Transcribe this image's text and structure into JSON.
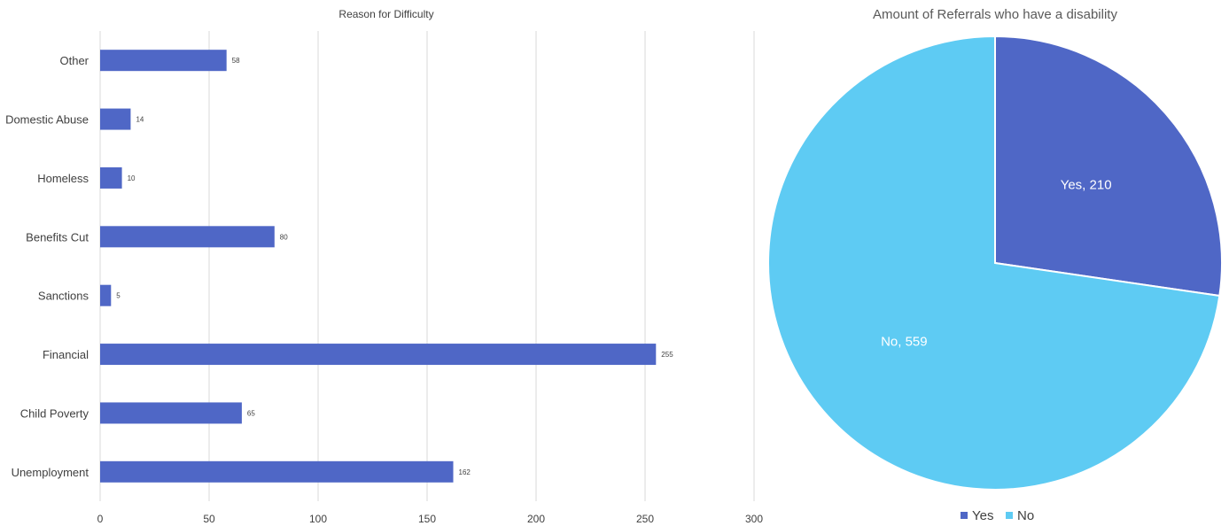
{
  "chart_data": [
    {
      "type": "bar",
      "orientation": "horizontal",
      "title": "Reason for Difficulty",
      "categories": [
        "Unemployment",
        "Child Poverty",
        "Financial",
        "Sanctions",
        "Benefits Cut",
        "Homeless",
        "Domestic Abuse",
        "Other"
      ],
      "values": [
        162,
        65,
        255,
        5,
        80,
        10,
        14,
        58
      ],
      "xlim": [
        0,
        300
      ],
      "x_ticks": [
        "0",
        "50",
        "100",
        "150",
        "200",
        "250",
        "300"
      ],
      "grid": true,
      "color": "#4f67c6"
    },
    {
      "type": "pie",
      "title": "Amount of Referrals who have a disability",
      "slices": [
        {
          "label": "Yes",
          "value": 210,
          "text": "Yes, 210",
          "color": "#4f67c6"
        },
        {
          "label": "No",
          "value": 559,
          "text": "No, 559",
          "color": "#5ecbf3"
        }
      ],
      "legend": "bottom",
      "legend_entries": [
        "Yes",
        "No"
      ]
    }
  ]
}
